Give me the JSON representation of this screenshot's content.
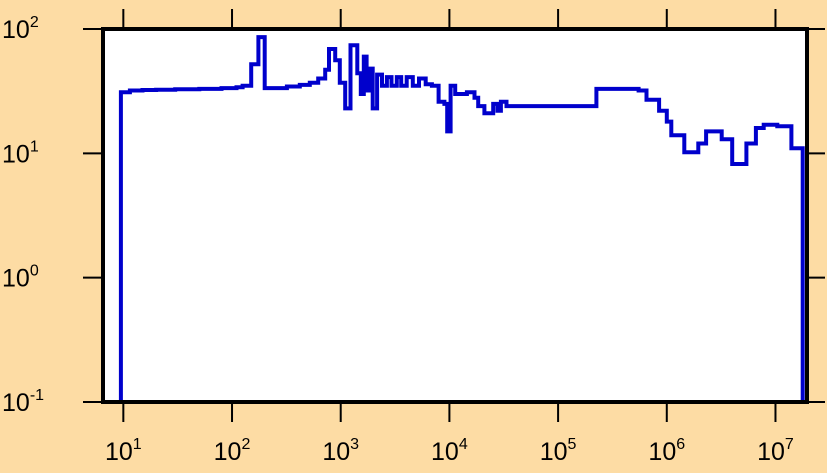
{
  "colors": {
    "background": "#FDDCA4",
    "plot_area": "#FFFFFF",
    "axis": "#000000",
    "series": "#0000CC"
  },
  "chart_data": {
    "type": "line",
    "step": true,
    "title": "",
    "xlabel": "",
    "ylabel": "",
    "xscale": "log",
    "yscale": "log",
    "xlim": [
      6.5,
      19500000
    ],
    "ylim": [
      0.1,
      100
    ],
    "grid": false,
    "legend": "none",
    "x_ticks": [
      {
        "value": 10,
        "base": "10",
        "exp": "1"
      },
      {
        "value": 100,
        "base": "10",
        "exp": "2"
      },
      {
        "value": 1000,
        "base": "10",
        "exp": "3"
      },
      {
        "value": 10000,
        "base": "10",
        "exp": "4"
      },
      {
        "value": 100000,
        "base": "10",
        "exp": "5"
      },
      {
        "value": 1000000,
        "base": "10",
        "exp": "6"
      },
      {
        "value": 10000000,
        "base": "10",
        "exp": "7"
      }
    ],
    "y_ticks": [
      {
        "value": 0.1,
        "base": "10",
        "exp": "-1"
      },
      {
        "value": 1,
        "base": "10",
        "exp": "0"
      },
      {
        "value": 10,
        "base": "10",
        "exp": "1"
      },
      {
        "value": 100,
        "base": "10",
        "exp": "2"
      }
    ],
    "series": [
      {
        "points": [
          [
            9.5,
            0.1
          ],
          [
            9.5,
            31
          ],
          [
            11.5,
            32
          ],
          [
            15,
            32.3
          ],
          [
            20,
            32.5
          ],
          [
            30,
            32.8
          ],
          [
            50,
            33
          ],
          [
            80,
            33.5
          ],
          [
            110,
            34
          ],
          [
            125,
            35
          ],
          [
            150,
            52
          ],
          [
            175,
            86
          ],
          [
            200,
            33.5
          ],
          [
            250,
            33.5
          ],
          [
            320,
            34.5
          ],
          [
            420,
            35.5
          ],
          [
            520,
            37
          ],
          [
            620,
            40
          ],
          [
            720,
            47
          ],
          [
            780,
            69
          ],
          [
            890,
            56
          ],
          [
            980,
            37
          ],
          [
            1100,
            23
          ],
          [
            1230,
            74
          ],
          [
            1420,
            44
          ],
          [
            1530,
            30
          ],
          [
            1630,
            60
          ],
          [
            1730,
            32
          ],
          [
            1850,
            48
          ],
          [
            1970,
            23
          ],
          [
            2160,
            43
          ],
          [
            2400,
            35
          ],
          [
            2660,
            41
          ],
          [
            2930,
            35
          ],
          [
            3280,
            41
          ],
          [
            3600,
            35
          ],
          [
            4050,
            41
          ],
          [
            4600,
            35
          ],
          [
            5250,
            40
          ],
          [
            6050,
            36
          ],
          [
            6900,
            35
          ],
          [
            7950,
            26
          ],
          [
            9000,
            25
          ],
          [
            9550,
            15
          ],
          [
            10250,
            35
          ],
          [
            11300,
            30
          ],
          [
            14500,
            31
          ],
          [
            17000,
            28
          ],
          [
            18400,
            24
          ],
          [
            21000,
            21
          ],
          [
            25300,
            25
          ],
          [
            27700,
            22
          ],
          [
            29800,
            26
          ],
          [
            33500,
            24
          ],
          [
            55000,
            24
          ],
          [
            110000,
            24
          ],
          [
            200000,
            24
          ],
          [
            225000,
            33
          ],
          [
            350000,
            33
          ],
          [
            550000,
            32
          ],
          [
            650000,
            27
          ],
          [
            850000,
            22
          ],
          [
            1000000,
            18
          ],
          [
            1100000,
            14
          ],
          [
            1450000,
            10.2
          ],
          [
            1950000,
            12
          ],
          [
            2300000,
            15
          ],
          [
            3200000,
            13
          ],
          [
            4000000,
            8.2
          ],
          [
            5400000,
            12
          ],
          [
            6600000,
            16
          ],
          [
            7800000,
            17
          ],
          [
            10400000,
            16.5
          ],
          [
            14000000,
            11
          ],
          [
            17800000,
            11
          ],
          [
            17800000,
            0.1
          ]
        ]
      }
    ]
  }
}
